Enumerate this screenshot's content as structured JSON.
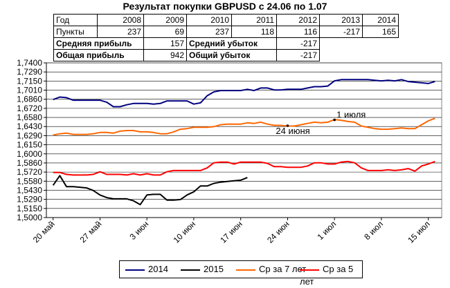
{
  "title": "Результат покупки GBPUSD с 24.06 по 1.07",
  "table": {
    "year_label": "Год",
    "years": [
      "2008",
      "2009",
      "2010",
      "2011",
      "2012",
      "2013",
      "2014"
    ],
    "points_label": "Пункты",
    "points": [
      "237",
      "69",
      "237",
      "118",
      "116",
      "-217",
      "165"
    ],
    "avg_profit_label": "Средняя прибыль",
    "avg_profit": "157",
    "avg_loss_label": "Средний убыток",
    "avg_loss": "-217",
    "total_profit_label": "Общая прибыль",
    "total_profit": "942",
    "total_loss_label": "Общий убыток",
    "total_loss": "-217"
  },
  "chart_data": {
    "type": "line",
    "ylim": [
      1.5,
      1.74
    ],
    "y_ticks": [
      "1,5000",
      "1,5150",
      "1,5290",
      "1,5430",
      "1,5580",
      "1,5720",
      "1,5860",
      "1,6000",
      "1,6150",
      "1,6290",
      "1,6430",
      "1,6580",
      "1,6720",
      "1,6860",
      "1,7010",
      "1,7150",
      "1,7290",
      "1,7400"
    ],
    "x_ticks": [
      "20 май",
      "27 май",
      "3 июн",
      "10 июн",
      "17 июн",
      "24 июн",
      "1 июл",
      "8 июл",
      "15 июл"
    ],
    "x_tick_days": [
      0,
      7,
      14,
      21,
      28,
      35,
      42,
      49,
      56
    ],
    "grid": true,
    "legend_position": "bottom",
    "annotations": [
      {
        "text": "1 июля",
        "day": 42,
        "y": 1.6515
      },
      {
        "text": "24 июня",
        "day": 35,
        "y": 1.6425
      }
    ],
    "series": [
      {
        "name": "2014",
        "color": "#000080",
        "x": [
          0,
          1,
          2,
          3,
          4,
          5,
          6,
          7,
          8,
          9,
          10,
          11,
          12,
          13,
          14,
          15,
          16,
          17,
          18,
          19,
          20,
          21,
          22,
          23,
          24,
          25,
          26,
          27,
          28,
          29,
          30,
          31,
          32,
          33,
          34,
          35,
          36,
          37,
          38,
          39,
          40,
          41,
          42,
          43,
          44,
          45,
          46,
          47,
          48,
          49,
          50,
          51,
          52,
          53,
          54,
          55,
          56,
          57
        ],
        "y": [
          1.683,
          1.687,
          1.686,
          1.682,
          1.682,
          1.682,
          1.682,
          1.682,
          1.679,
          1.672,
          1.672,
          1.675,
          1.677,
          1.677,
          1.677,
          1.676,
          1.677,
          1.681,
          1.681,
          1.681,
          1.681,
          1.676,
          1.678,
          1.689,
          1.695,
          1.697,
          1.697,
          1.697,
          1.697,
          1.699,
          1.697,
          1.701,
          1.701,
          1.698,
          1.698,
          1.699,
          1.699,
          1.699,
          1.701,
          1.703,
          1.703,
          1.704,
          1.712,
          1.714,
          1.714,
          1.714,
          1.714,
          1.714,
          1.713,
          1.712,
          1.713,
          1.712,
          1.714,
          1.711,
          1.71,
          1.709,
          1.708,
          1.711
        ]
      },
      {
        "name": "2015",
        "color": "#000000",
        "x": [
          0,
          1,
          2,
          3,
          4,
          5,
          6,
          7,
          8,
          9,
          10,
          11,
          12,
          13,
          14,
          15,
          16,
          17,
          18,
          19,
          20,
          21,
          22,
          23,
          24,
          25,
          26,
          27,
          28,
          29
        ],
        "y": [
          1.55,
          1.565,
          1.548,
          1.548,
          1.547,
          1.546,
          1.542,
          1.535,
          1.531,
          1.529,
          1.529,
          1.529,
          1.526,
          1.52,
          1.535,
          1.536,
          1.536,
          1.527,
          1.527,
          1.528,
          1.535,
          1.54,
          1.549,
          1.549,
          1.553,
          1.555,
          1.556,
          1.557,
          1.558,
          1.562
        ]
      },
      {
        "name": "Ср за 7 лет",
        "color": "#ff6600",
        "x": [
          0,
          1,
          2,
          3,
          4,
          5,
          6,
          7,
          8,
          9,
          10,
          11,
          12,
          13,
          14,
          15,
          16,
          17,
          18,
          19,
          20,
          21,
          22,
          23,
          24,
          25,
          26,
          27,
          28,
          29,
          30,
          31,
          32,
          33,
          34,
          35,
          36,
          37,
          38,
          39,
          40,
          41,
          42,
          43,
          44,
          45,
          46,
          47,
          48,
          49,
          50,
          51,
          52,
          53,
          54,
          55,
          56,
          57
        ],
        "y": [
          1.628,
          1.63,
          1.631,
          1.629,
          1.629,
          1.629,
          1.63,
          1.632,
          1.632,
          1.631,
          1.634,
          1.635,
          1.635,
          1.633,
          1.633,
          1.632,
          1.63,
          1.63,
          1.633,
          1.637,
          1.638,
          1.64,
          1.64,
          1.64,
          1.641,
          1.644,
          1.645,
          1.645,
          1.645,
          1.647,
          1.646,
          1.648,
          1.645,
          1.643,
          1.643,
          1.642,
          1.642,
          1.644,
          1.646,
          1.648,
          1.647,
          1.648,
          1.652,
          1.651,
          1.649,
          1.648,
          1.642,
          1.64,
          1.638,
          1.637,
          1.637,
          1.638,
          1.639,
          1.638,
          1.638,
          1.644,
          1.65,
          1.654
        ]
      },
      {
        "name": "Ср за 5 лет",
        "color": "#ff0000",
        "x": [
          0,
          1,
          2,
          3,
          4,
          5,
          6,
          7,
          8,
          9,
          10,
          11,
          12,
          13,
          14,
          15,
          16,
          17,
          18,
          19,
          20,
          21,
          22,
          23,
          24,
          25,
          26,
          27,
          28,
          29,
          30,
          31,
          32,
          33,
          34,
          35,
          36,
          37,
          38,
          39,
          40,
          41,
          42,
          43,
          44,
          45,
          46,
          47,
          48,
          49,
          50,
          51,
          52,
          53,
          54,
          55,
          56,
          57
        ],
        "y": [
          1.57,
          1.57,
          1.567,
          1.566,
          1.566,
          1.566,
          1.567,
          1.571,
          1.567,
          1.567,
          1.567,
          1.566,
          1.568,
          1.566,
          1.568,
          1.566,
          1.566,
          1.571,
          1.573,
          1.573,
          1.573,
          1.573,
          1.573,
          1.577,
          1.585,
          1.586,
          1.586,
          1.583,
          1.586,
          1.586,
          1.586,
          1.586,
          1.584,
          1.579,
          1.579,
          1.578,
          1.578,
          1.578,
          1.58,
          1.585,
          1.585,
          1.583,
          1.583,
          1.586,
          1.587,
          1.585,
          1.577,
          1.573,
          1.573,
          1.573,
          1.574,
          1.573,
          1.574,
          1.576,
          1.572,
          1.58,
          1.583,
          1.587
        ]
      }
    ]
  }
}
